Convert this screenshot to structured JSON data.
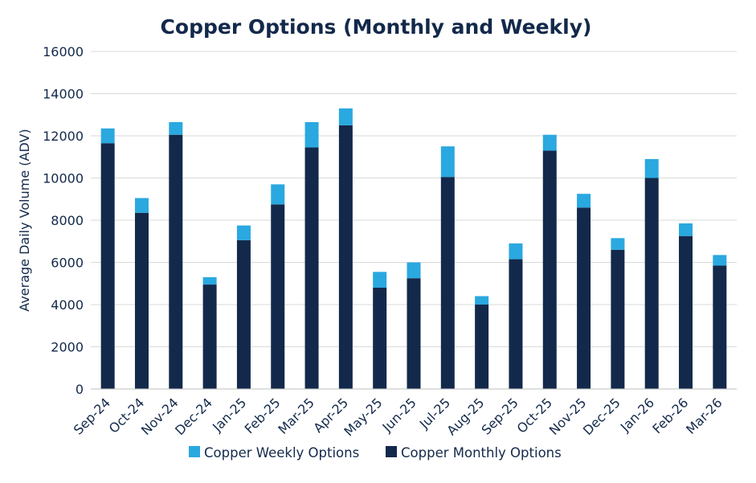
{
  "colors": {
    "monthly": "#13294b",
    "weekly": "#2aa8e0",
    "text": "#13294b",
    "grid": "#d9d9d9",
    "axis": "#bfbfbf"
  },
  "chart_data": {
    "type": "bar",
    "stacked": true,
    "title": "Copper Options (Monthly and Weekly)",
    "xlabel": "",
    "ylabel": "Average Daily Volume (ADV)",
    "ylim": [
      0,
      16000
    ],
    "yticks": [
      0,
      2000,
      4000,
      6000,
      8000,
      10000,
      12000,
      14000,
      16000
    ],
    "grid": true,
    "legend_position": "bottom",
    "categories": [
      "Sep-24",
      "Oct-24",
      "Nov-24",
      "Dec-24",
      "Jan-25",
      "Feb-25",
      "Mar-25",
      "Apr-25",
      "May-25",
      "Jun-25",
      "Jul-25",
      "Aug-25",
      "Sep-25",
      "Oct-25",
      "Nov-25",
      "Dec-25",
      "Jan-26",
      "Feb-26",
      "Mar-26"
    ],
    "series": [
      {
        "name": "Copper Monthly Options",
        "color": "#13294b",
        "values": [
          11650,
          8350,
          12050,
          4950,
          7050,
          8750,
          11450,
          12500,
          4800,
          5250,
          10050,
          4000,
          6150,
          11300,
          8600,
          6600,
          10000,
          7250,
          5850
        ]
      },
      {
        "name": "Copper Weekly Options",
        "color": "#2aa8e0",
        "values": [
          700,
          700,
          600,
          350,
          700,
          950,
          1200,
          800,
          750,
          750,
          1450,
          400,
          750,
          750,
          650,
          550,
          900,
          600,
          500
        ]
      }
    ],
    "legend": [
      "Copper Weekly Options",
      "Copper Monthly Options"
    ]
  }
}
